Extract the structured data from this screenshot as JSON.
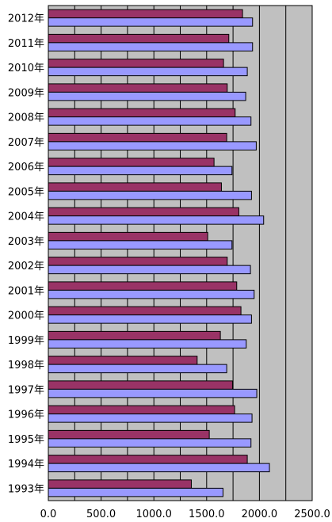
{
  "chart_data": {
    "type": "bar",
    "orientation": "horizontal",
    "title": "",
    "xlabel": "",
    "ylabel": "",
    "xlim": [
      0,
      2500
    ],
    "x_ticks": [
      0,
      250,
      500,
      750,
      1000,
      1250,
      1500,
      1750,
      2000,
      2250,
      2500
    ],
    "x_tick_labels": [
      "0.0",
      "500.0",
      "1000.0",
      "1500.0",
      "2000.0",
      "2500.0"
    ],
    "grid": true,
    "legend": "none",
    "categories": [
      "2012年",
      "2011年",
      "2010年",
      "2009年",
      "2008年",
      "2007年",
      "2006年",
      "2005年",
      "2004年",
      "2003年",
      "2002年",
      "2001年",
      "2000年",
      "1999年",
      "1998年",
      "1997年",
      "1996年",
      "1995年",
      "1994年",
      "1993年"
    ],
    "series": [
      {
        "color": "#993366",
        "values": [
          1840,
          1710,
          1660,
          1695,
          1770,
          1690,
          1570,
          1640,
          1805,
          1510,
          1695,
          1785,
          1825,
          1630,
          1410,
          1745,
          1765,
          1525,
          1885,
          1355
        ]
      },
      {
        "color": "#9999ff",
        "values": [
          1935,
          1935,
          1885,
          1870,
          1920,
          1970,
          1740,
          1925,
          2040,
          1740,
          1915,
          1950,
          1925,
          1875,
          1690,
          1975,
          1930,
          1920,
          2095,
          1655
        ]
      }
    ]
  },
  "colors": {
    "plot_background": "#c0c0c0",
    "grid_line": "#000000",
    "bar_outline": "#000000"
  }
}
